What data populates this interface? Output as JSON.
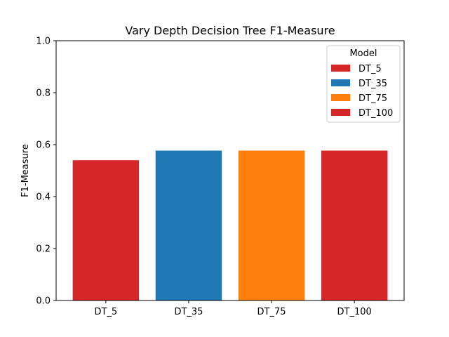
{
  "chart_data": {
    "type": "bar",
    "title": "Vary Depth Decision Tree F1-Measure",
    "xlabel": "",
    "ylabel": "F1-Measure",
    "ylim": [
      0,
      1.0
    ],
    "yticks": [
      "0.0",
      "0.2",
      "0.4",
      "0.6",
      "0.8",
      "1.0"
    ],
    "categories": [
      "DT_5",
      "DT_35",
      "DT_75",
      "DT_100"
    ],
    "values": [
      0.54,
      0.577,
      0.577,
      0.577
    ],
    "colors": [
      "#d62728",
      "#1f77b4",
      "#ff7f0e",
      "#d62728"
    ],
    "grid": false,
    "legend": {
      "title": "Model",
      "placement": "top-right",
      "entries": [
        "DT_5",
        "DT_35",
        "DT_75",
        "DT_100"
      ]
    }
  }
}
